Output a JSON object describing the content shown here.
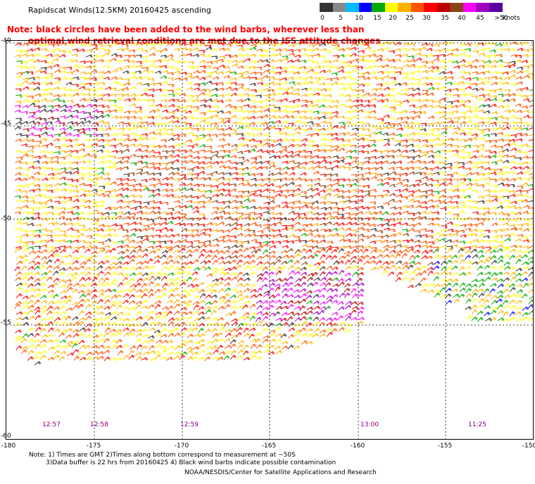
{
  "title": "Rapidscat Winds(12.5KM) 20160425 ascending",
  "note": {
    "line1": "Note: black circles have been added to the wind barbs, wherever less than",
    "line2": "optimal wind retrieval conditions are met due to the ISS attitude changes"
  },
  "colorbar": {
    "unit": "knots",
    "labels": [
      "0",
      "5",
      "10",
      "15",
      "20",
      "25",
      "30",
      "35",
      "40",
      "45",
      ">50"
    ],
    "colors": [
      "#333333",
      "#888888",
      "#00bbff",
      "#0000ff",
      "#00aa00",
      "#ffff00",
      "#ffb300",
      "#ff5500",
      "#ff0000",
      "#bb0000",
      "#8b4513",
      "#ff00ff",
      "#a000c0",
      "#5a00a0"
    ]
  },
  "latitude_labels": [
    "-40",
    "-45",
    "-50",
    "-55",
    "-60"
  ],
  "longitude_labels": [
    "-180",
    "-175",
    "-170",
    "-165",
    "-160",
    "-155",
    "-150"
  ],
  "time_labels": [
    "12:57",
    "12:58",
    "12:59",
    "13:00",
    "11:25"
  ],
  "footer": {
    "line1": "Note: 1) Times are GMT 2)Times along bottom correspond to measurement at ~50S",
    "line2": "3)Data buffer is 22 hrs from 20160425 4) Black wind barbs indicate possible contamination",
    "credit": "NOAA/NESDIS/Center for Satellite Applications and Research"
  }
}
